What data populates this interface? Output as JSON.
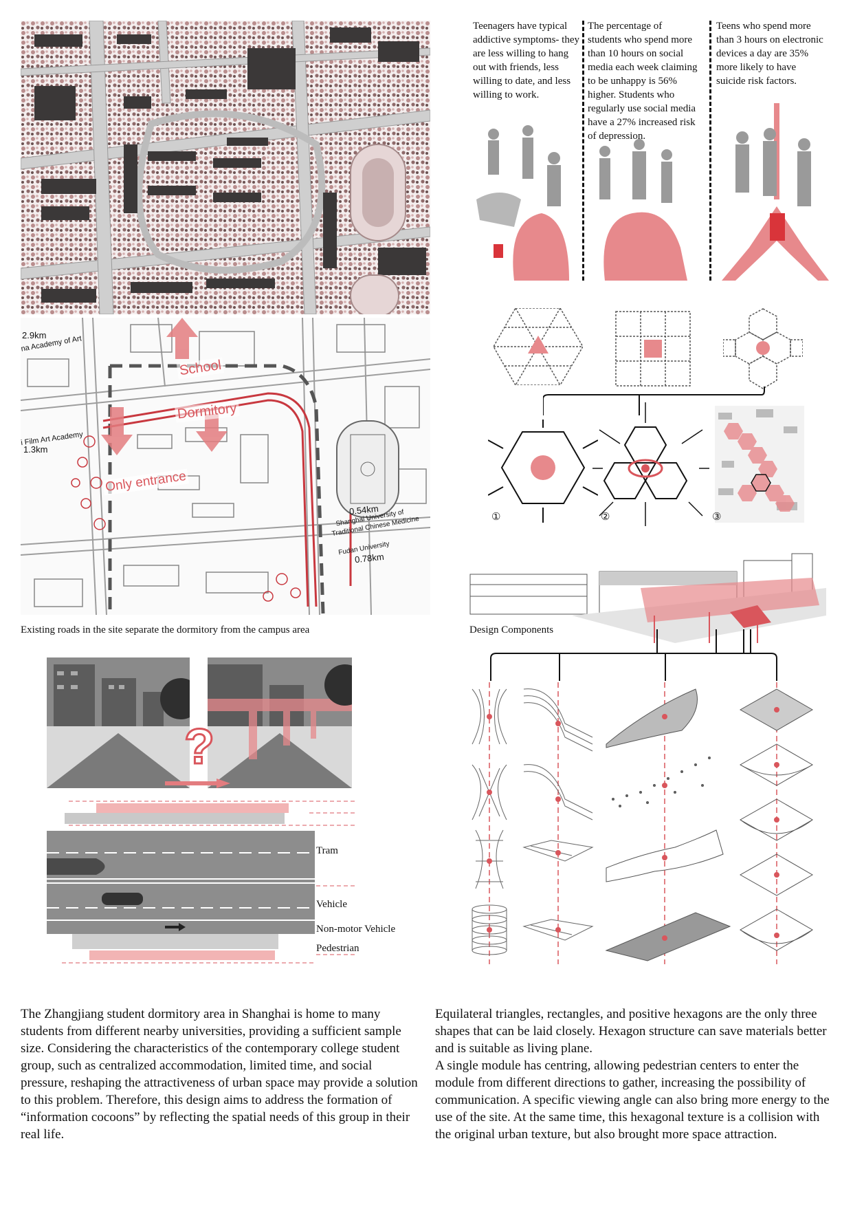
{
  "map_labels": {
    "school": "School",
    "dormitory": "Dormitory",
    "only_entrance": "Only entrance",
    "academy_of_art_dist": "2.9km",
    "academy_of_art": "na Academy of Art",
    "film_academy": "i Film Art Academy",
    "film_academy_dist": "1.3km",
    "shanghai_tcm_dist": "0.54km",
    "shanghai_tcm_line1": "Shanghai University of",
    "shanghai_tcm_line2": "Traditional Chinese Medicine",
    "fudan": "Fudan University",
    "fudan_dist": "0.78km"
  },
  "map_caption": "Existing roads in the site separate the dormitory from the campus area",
  "stats": [
    {
      "text": "Teenagers have typical addictive symptoms- they are less willing to hang out with friends, less willing to date, and less willing to work."
    },
    {
      "text": "The percentage of students who spend more than 10 hours on social media each week claiming to be unhappy is 56% higher. Students who regularly use social media have a 27% increased risk of depression."
    },
    {
      "text": "Teens who spend more than 3 hours on electronic devices a day are 35% more likely to have suicide risk factors."
    }
  ],
  "module_numbers": [
    "①",
    "②",
    "③"
  ],
  "design_caption": "Design Components",
  "question_mark": "?",
  "lanes": {
    "tram": "Tram",
    "vehicle": "Vehicle",
    "non_motor": "Non-motor Vehicle",
    "pedestrian": "Pedestrian"
  },
  "paragraph_left": "The Zhangjiang student dormitory area in Shanghai is home to many students from different nearby universities, providing a sufficient sample size. Considering the characteristics of the contemporary college student group, such as centralized accommodation, limited time, and social pressure, reshaping the attractiveness of urban space may provide a solution to this problem. Therefore, this design aims to address the formation of “information cocoons” by reflecting the spatial needs of this group in their real life.",
  "paragraph_right_1": "Equilateral triangles, rectangles, and positive hexagons are the only three shapes that can be laid closely. Hexagon structure can save materials better and is suitable as living plane.",
  "paragraph_right_2": "A single module has centring, allowing pedestrian centers to enter the module from different directions to gather, increasing the possibility of communication. A specific viewing angle can also bring more energy to the use of the site. At the same time, this hexagonal texture is a collision with the original urban texture, but also brought more space attraction.",
  "colors": {
    "accent": "#d9565c",
    "accent_light": "#f2b4b4",
    "gray": "#8a8a8a"
  }
}
